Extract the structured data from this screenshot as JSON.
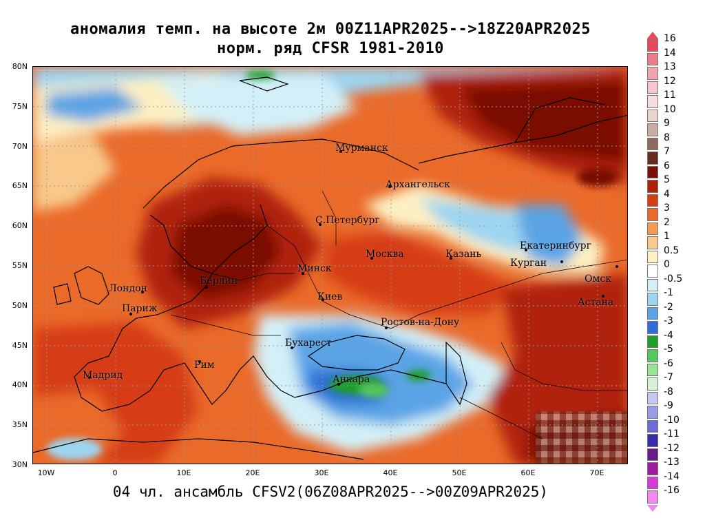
{
  "title_line1": "аномалия темп. на высоте 2м 00Z11APR2025-->18Z20APR2025",
  "title_line2": "норм. ряд CFSR 1981-2010",
  "subtitle": "04 чл. ансамбль CFSV2(06Z08APR2025-->00Z09APR2025)",
  "lat_labels": [
    "80N",
    "75N",
    "70N",
    "65N",
    "60N",
    "55N",
    "50N",
    "45N",
    "40N",
    "35N",
    "30N"
  ],
  "lon_labels": [
    "10W",
    "0",
    "10E",
    "20E",
    "30E",
    "40E",
    "50E",
    "60E",
    "70E"
  ],
  "cities": [
    {
      "name": "Мурманск"
    },
    {
      "name": "Архангельск"
    },
    {
      "name": "С.Петербург"
    },
    {
      "name": "Москва"
    },
    {
      "name": "Казань"
    },
    {
      "name": "Екатеринбург"
    },
    {
      "name": "Курган"
    },
    {
      "name": "Омск"
    },
    {
      "name": "Астана"
    },
    {
      "name": "Минск"
    },
    {
      "name": "Киев"
    },
    {
      "name": "Берлин"
    },
    {
      "name": "Лондон"
    },
    {
      "name": "Париж"
    },
    {
      "name": "Ростов-на-Дону"
    },
    {
      "name": "Бухарест"
    },
    {
      "name": "Рим"
    },
    {
      "name": "Мадрид"
    },
    {
      "name": "Анкара"
    }
  ],
  "legend": {
    "labels": [
      "16",
      "14",
      "13",
      "12",
      "11",
      "10",
      "9",
      "8",
      "7",
      "6",
      "5",
      "4",
      "3",
      "2",
      "1",
      "0.5",
      "0",
      "-0.5",
      "-1",
      "-2",
      "-3",
      "-4",
      "-5",
      "-6",
      "-7",
      "-8",
      "-9",
      "-10",
      "-11",
      "-12",
      "-13",
      "-14",
      "-16"
    ],
    "colors": [
      "#e8485c",
      "#ec7a8a",
      "#f2a3ae",
      "#f6c6cc",
      "#f8dcdc",
      "#e9d6cf",
      "#c9aca1",
      "#8f6a5c",
      "#6b2a1f",
      "#7a0f05",
      "#b02008",
      "#d63d12",
      "#ea6a2a",
      "#f39a55",
      "#f8c98a",
      "#fdf0c2",
      "#ffffff",
      "#d3f0f8",
      "#9dd4f0",
      "#5aa4e6",
      "#2d6fd6",
      "#1f9e2a",
      "#52c95a",
      "#96e596",
      "#d5f2d5",
      "#c7c7f0",
      "#9a9ae6",
      "#6c6cd6",
      "#3a2aa8",
      "#6a1a8a",
      "#a01aa0",
      "#d83ad8",
      "#f088f0"
    ]
  }
}
